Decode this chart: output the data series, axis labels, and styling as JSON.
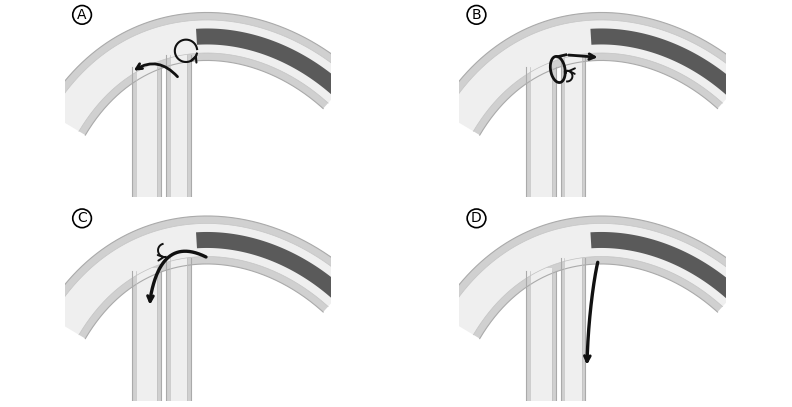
{
  "vessel_outer_color": "#d0d0d0",
  "vessel_lumen_color": "#efefef",
  "vessel_line_outer": "#aaaaaa",
  "vessel_line_inner": "#c0c0c0",
  "catheter_color": "#5a5a5a",
  "gw_color": "#111111",
  "panel_labels": [
    "A",
    "B",
    "C",
    "D"
  ],
  "bg_color": "#ffffff",
  "border_color": "#999999"
}
